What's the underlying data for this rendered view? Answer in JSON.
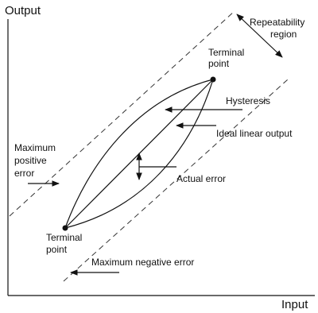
{
  "axes": {
    "y_label": "Output",
    "x_label": "Input"
  },
  "labels": {
    "repeatability_region": [
      "Repeatability",
      "region"
    ],
    "terminal_point_top": [
      "Terminal",
      "point"
    ],
    "hysteresis": "Hysteresis",
    "ideal_linear_output": "Ideal linear output",
    "maximum_positive_error": [
      "Maximum",
      "positive",
      "error"
    ],
    "actual_error": "Actual  error",
    "terminal_point_bottom": [
      "Terminal",
      "point"
    ],
    "maximum_negative_error": "Maximum negative error"
  }
}
